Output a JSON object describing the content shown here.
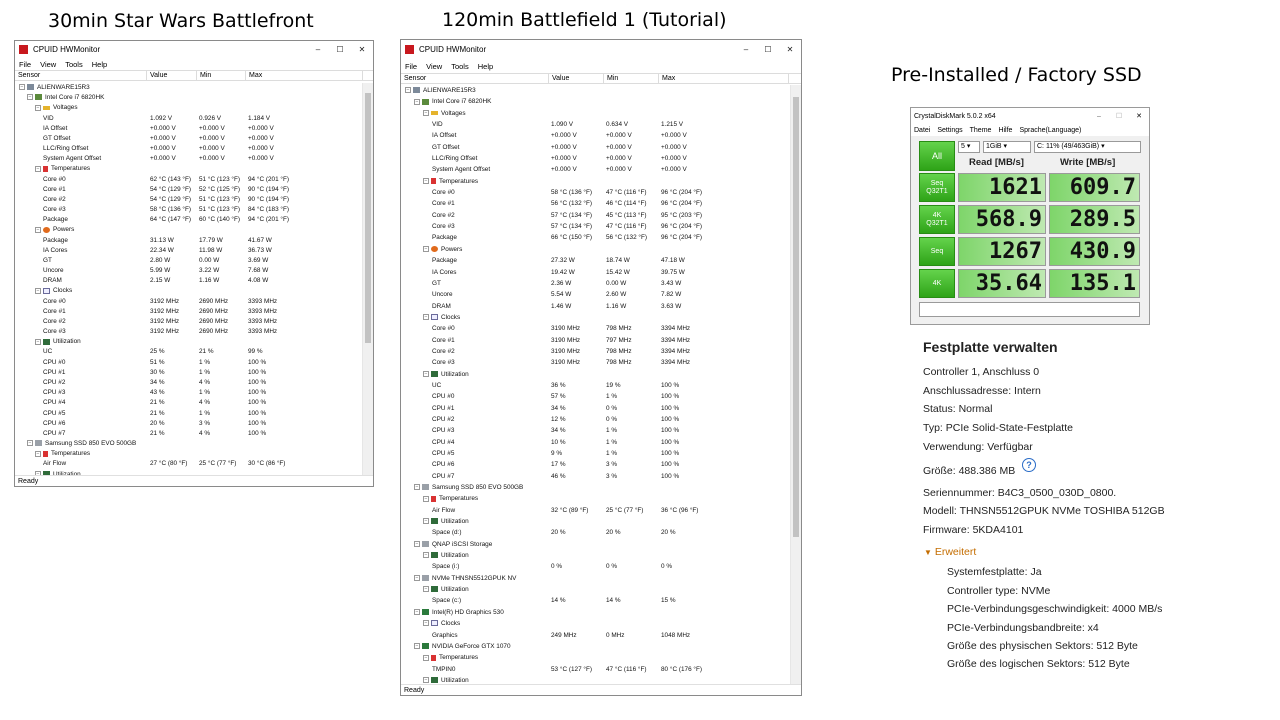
{
  "captions": {
    "left": "30min Star Wars Battlefront",
    "middle": "120min Battlefield 1 (Tutorial)",
    "right": "Pre-Installed / Factory  SSD"
  },
  "hwmon": {
    "title": "CPUID HWMonitor",
    "menu": [
      "File",
      "View",
      "Tools",
      "Help"
    ],
    "columns": [
      "Sensor",
      "Value",
      "Min",
      "Max"
    ],
    "status": "Ready",
    "window_controls": [
      "–",
      "☐",
      "✕"
    ]
  },
  "left_rows": [
    {
      "d": 0,
      "t": "exp",
      "i": "comp",
      "l": "ALIENWARE15R3"
    },
    {
      "d": 1,
      "t": "exp",
      "i": "cpu",
      "l": "Intel Core i7 6820HK"
    },
    {
      "d": 2,
      "t": "exp",
      "i": "volt",
      "l": "Voltages"
    },
    {
      "d": 3,
      "l": "VID",
      "v": "1.092 V",
      "mn": "0.926 V",
      "mx": "1.184 V"
    },
    {
      "d": 3,
      "l": "IA Offset",
      "v": "+0.000 V",
      "mn": "+0.000 V",
      "mx": "+0.000 V"
    },
    {
      "d": 3,
      "l": "GT Offset",
      "v": "+0.000 V",
      "mn": "+0.000 V",
      "mx": "+0.000 V"
    },
    {
      "d": 3,
      "l": "LLC/Ring Offset",
      "v": "+0.000 V",
      "mn": "+0.000 V",
      "mx": "+0.000 V"
    },
    {
      "d": 3,
      "l": "System Agent Offset",
      "v": "+0.000 V",
      "mn": "+0.000 V",
      "mx": "+0.000 V"
    },
    {
      "d": 2,
      "t": "exp",
      "i": "temp",
      "l": "Temperatures"
    },
    {
      "d": 3,
      "l": "Core #0",
      "v": "62 °C (143 °F)",
      "mn": "51 °C (123 °F)",
      "mx": "94 °C (201 °F)"
    },
    {
      "d": 3,
      "l": "Core #1",
      "v": "54 °C (129 °F)",
      "mn": "52 °C (125 °F)",
      "mx": "90 °C (194 °F)"
    },
    {
      "d": 3,
      "l": "Core #2",
      "v": "54 °C (129 °F)",
      "mn": "51 °C (123 °F)",
      "mx": "90 °C (194 °F)"
    },
    {
      "d": 3,
      "l": "Core #3",
      "v": "58 °C (136 °F)",
      "mn": "51 °C (123 °F)",
      "mx": "84 °C (183 °F)"
    },
    {
      "d": 3,
      "l": "Package",
      "v": "64 °C (147 °F)",
      "mn": "60 °C (140 °F)",
      "mx": "94 °C (201 °F)"
    },
    {
      "d": 2,
      "t": "exp",
      "i": "pow",
      "l": "Powers"
    },
    {
      "d": 3,
      "l": "Package",
      "v": "31.13 W",
      "mn": "17.79 W",
      "mx": "41.67 W"
    },
    {
      "d": 3,
      "l": "IA Cores",
      "v": "22.34 W",
      "mn": "11.98 W",
      "mx": "36.73 W"
    },
    {
      "d": 3,
      "l": "GT",
      "v": "2.80 W",
      "mn": "0.00 W",
      "mx": "3.69 W"
    },
    {
      "d": 3,
      "l": "Uncore",
      "v": "5.99 W",
      "mn": "3.22 W",
      "mx": "7.68 W"
    },
    {
      "d": 3,
      "l": "DRAM",
      "v": "2.15 W",
      "mn": "1.16 W",
      "mx": "4.08 W"
    },
    {
      "d": 2,
      "t": "exp",
      "i": "clk",
      "l": "Clocks"
    },
    {
      "d": 3,
      "l": "Core #0",
      "v": "3192 MHz",
      "mn": "2690 MHz",
      "mx": "3393 MHz"
    },
    {
      "d": 3,
      "l": "Core #1",
      "v": "3192 MHz",
      "mn": "2690 MHz",
      "mx": "3393 MHz"
    },
    {
      "d": 3,
      "l": "Core #2",
      "v": "3192 MHz",
      "mn": "2690 MHz",
      "mx": "3393 MHz"
    },
    {
      "d": 3,
      "l": "Core #3",
      "v": "3192 MHz",
      "mn": "2690 MHz",
      "mx": "3393 MHz"
    },
    {
      "d": 2,
      "t": "exp",
      "i": "util",
      "l": "Utilization"
    },
    {
      "d": 3,
      "l": "UC",
      "v": "25 %",
      "mn": "21 %",
      "mx": "99 %"
    },
    {
      "d": 3,
      "l": "CPU #0",
      "v": "51 %",
      "mn": "1 %",
      "mx": "100 %"
    },
    {
      "d": 3,
      "l": "CPU #1",
      "v": "30 %",
      "mn": "1 %",
      "mx": "100 %"
    },
    {
      "d": 3,
      "l": "CPU #2",
      "v": "34 %",
      "mn": "4 %",
      "mx": "100 %"
    },
    {
      "d": 3,
      "l": "CPU #3",
      "v": "43 %",
      "mn": "1 %",
      "mx": "100 %"
    },
    {
      "d": 3,
      "l": "CPU #4",
      "v": "21 %",
      "mn": "4 %",
      "mx": "100 %"
    },
    {
      "d": 3,
      "l": "CPU #5",
      "v": "21 %",
      "mn": "1 %",
      "mx": "100 %"
    },
    {
      "d": 3,
      "l": "CPU #6",
      "v": "20 %",
      "mn": "3 %",
      "mx": "100 %"
    },
    {
      "d": 3,
      "l": "CPU #7",
      "v": "21 %",
      "mn": "4 %",
      "mx": "100 %"
    },
    {
      "d": 1,
      "t": "exp",
      "i": "disk",
      "l": "Samsung SSD 850 EVO 500GB"
    },
    {
      "d": 2,
      "t": "exp",
      "i": "temp",
      "l": "Temperatures"
    },
    {
      "d": 3,
      "l": "Air Flow",
      "v": "27 °C (80 °F)",
      "mn": "25 °C (77 °F)",
      "mx": "30 °C (86 °F)"
    },
    {
      "d": 2,
      "t": "exp",
      "i": "util",
      "l": "Utilization"
    }
  ],
  "mid_rows": [
    {
      "d": 0,
      "t": "exp",
      "i": "comp",
      "l": "ALIENWARE15R3"
    },
    {
      "d": 1,
      "t": "exp",
      "i": "cpu",
      "l": "Intel Core i7 6820HK"
    },
    {
      "d": 2,
      "t": "exp",
      "i": "volt",
      "l": "Voltages"
    },
    {
      "d": 3,
      "l": "VID",
      "v": "1.090 V",
      "mn": "0.634 V",
      "mx": "1.215 V"
    },
    {
      "d": 3,
      "l": "IA Offset",
      "v": "+0.000 V",
      "mn": "+0.000 V",
      "mx": "+0.000 V"
    },
    {
      "d": 3,
      "l": "GT Offset",
      "v": "+0.000 V",
      "mn": "+0.000 V",
      "mx": "+0.000 V"
    },
    {
      "d": 3,
      "l": "LLC/Ring Offset",
      "v": "+0.000 V",
      "mn": "+0.000 V",
      "mx": "+0.000 V"
    },
    {
      "d": 3,
      "l": "System Agent Offset",
      "v": "+0.000 V",
      "mn": "+0.000 V",
      "mx": "+0.000 V"
    },
    {
      "d": 2,
      "t": "exp",
      "i": "temp",
      "l": "Temperatures"
    },
    {
      "d": 3,
      "l": "Core #0",
      "v": "58 °C (136 °F)",
      "mn": "47 °C (116 °F)",
      "mx": "96 °C (204 °F)"
    },
    {
      "d": 3,
      "l": "Core #1",
      "v": "56 °C (132 °F)",
      "mn": "46 °C (114 °F)",
      "mx": "96 °C (204 °F)"
    },
    {
      "d": 3,
      "l": "Core #2",
      "v": "57 °C (134 °F)",
      "mn": "45 °C (113 °F)",
      "mx": "95 °C (203 °F)"
    },
    {
      "d": 3,
      "l": "Core #3",
      "v": "57 °C (134 °F)",
      "mn": "47 °C (116 °F)",
      "mx": "96 °C (204 °F)"
    },
    {
      "d": 3,
      "l": "Package",
      "v": "66 °C (150 °F)",
      "mn": "56 °C (132 °F)",
      "mx": "96 °C (204 °F)"
    },
    {
      "d": 2,
      "t": "exp",
      "i": "pow",
      "l": "Powers"
    },
    {
      "d": 3,
      "l": "Package",
      "v": "27.32 W",
      "mn": "18.74 W",
      "mx": "47.18 W"
    },
    {
      "d": 3,
      "l": "IA Cores",
      "v": "19.42 W",
      "mn": "15.42 W",
      "mx": "39.75 W"
    },
    {
      "d": 3,
      "l": "GT",
      "v": "2.36 W",
      "mn": "0.00 W",
      "mx": "3.43 W"
    },
    {
      "d": 3,
      "l": "Uncore",
      "v": "5.54 W",
      "mn": "2.60 W",
      "mx": "7.82 W"
    },
    {
      "d": 3,
      "l": "DRAM",
      "v": "1.46 W",
      "mn": "1.16 W",
      "mx": "3.63 W"
    },
    {
      "d": 2,
      "t": "exp",
      "i": "clk",
      "l": "Clocks"
    },
    {
      "d": 3,
      "l": "Core #0",
      "v": "3190 MHz",
      "mn": "798 MHz",
      "mx": "3394 MHz"
    },
    {
      "d": 3,
      "l": "Core #1",
      "v": "3190 MHz",
      "mn": "797 MHz",
      "mx": "3394 MHz"
    },
    {
      "d": 3,
      "l": "Core #2",
      "v": "3190 MHz",
      "mn": "798 MHz",
      "mx": "3394 MHz"
    },
    {
      "d": 3,
      "l": "Core #3",
      "v": "3190 MHz",
      "mn": "798 MHz",
      "mx": "3394 MHz"
    },
    {
      "d": 2,
      "t": "exp",
      "i": "util",
      "l": "Utilization"
    },
    {
      "d": 3,
      "l": "UC",
      "v": "36 %",
      "mn": "19 %",
      "mx": "100 %"
    },
    {
      "d": 3,
      "l": "CPU #0",
      "v": "57 %",
      "mn": "1 %",
      "mx": "100 %"
    },
    {
      "d": 3,
      "l": "CPU #1",
      "v": "34 %",
      "mn": "0 %",
      "mx": "100 %"
    },
    {
      "d": 3,
      "l": "CPU #2",
      "v": "12 %",
      "mn": "0 %",
      "mx": "100 %"
    },
    {
      "d": 3,
      "l": "CPU #3",
      "v": "34 %",
      "mn": "1 %",
      "mx": "100 %"
    },
    {
      "d": 3,
      "l": "CPU #4",
      "v": "10 %",
      "mn": "1 %",
      "mx": "100 %"
    },
    {
      "d": 3,
      "l": "CPU #5",
      "v": "9 %",
      "mn": "1 %",
      "mx": "100 %"
    },
    {
      "d": 3,
      "l": "CPU #6",
      "v": "17 %",
      "mn": "3 %",
      "mx": "100 %"
    },
    {
      "d": 3,
      "l": "CPU #7",
      "v": "46 %",
      "mn": "3 %",
      "mx": "100 %"
    },
    {
      "d": 1,
      "t": "exp",
      "i": "disk",
      "l": "Samsung SSD 850 EVO 500GB"
    },
    {
      "d": 2,
      "t": "exp",
      "i": "temp",
      "l": "Temperatures"
    },
    {
      "d": 3,
      "l": "Air Flow",
      "v": "32 °C (89 °F)",
      "mn": "25 °C (77 °F)",
      "mx": "36 °C (96 °F)"
    },
    {
      "d": 2,
      "t": "exp",
      "i": "util",
      "l": "Utilization"
    },
    {
      "d": 3,
      "l": "Space (d:)",
      "v": "20 %",
      "mn": "20 %",
      "mx": "20 %"
    },
    {
      "d": 1,
      "t": "exp",
      "i": "disk",
      "l": "QNAP iSCSI Storage"
    },
    {
      "d": 2,
      "t": "exp",
      "i": "util",
      "l": "Utilization"
    },
    {
      "d": 3,
      "l": "Space (i:)",
      "v": "0 %",
      "mn": "0 %",
      "mx": "0 %"
    },
    {
      "d": 1,
      "t": "exp",
      "i": "disk",
      "l": "NVMe THNSN5512GPUK NV"
    },
    {
      "d": 2,
      "t": "exp",
      "i": "util",
      "l": "Utilization"
    },
    {
      "d": 3,
      "l": "Space (c:)",
      "v": "14 %",
      "mn": "14 %",
      "mx": "15 %"
    },
    {
      "d": 1,
      "t": "exp",
      "i": "gpu",
      "l": "Intel(R) HD Graphics 530"
    },
    {
      "d": 2,
      "t": "exp",
      "i": "clk",
      "l": "Clocks"
    },
    {
      "d": 3,
      "l": "Graphics",
      "v": "249 MHz",
      "mn": "0 MHz",
      "mx": "1048 MHz"
    },
    {
      "d": 1,
      "t": "exp",
      "i": "gpu",
      "l": "NVIDIA GeForce GTX 1070"
    },
    {
      "d": 2,
      "t": "exp",
      "i": "temp",
      "l": "Temperatures"
    },
    {
      "d": 3,
      "l": "TMPIN0",
      "v": "53 °C (127 °F)",
      "mn": "47 °C (116 °F)",
      "mx": "80 °C (176 °F)"
    },
    {
      "d": 2,
      "t": "exp",
      "i": "util",
      "l": "Utilization"
    }
  ],
  "cdm": {
    "title": "CrystalDiskMark 5.0.2 x64",
    "menu": [
      "Datei",
      "Settings",
      "Theme",
      "Hilfe",
      "Sprache(Language)"
    ],
    "all_label": "All",
    "count": "5",
    "size": "1GiB",
    "drive": "C: 11% (49/463GiB)",
    "read_header": "Read [MB/s]",
    "write_header": "Write [MB/s]",
    "tests": [
      {
        "name": "Seq",
        "sub": "Q32T1",
        "read": "1621",
        "write": "609.7"
      },
      {
        "name": "4K",
        "sub": "Q32T1",
        "read": "568.9",
        "write": "289.5"
      },
      {
        "name": "Seq",
        "sub": "",
        "read": "1267",
        "write": "430.9"
      },
      {
        "name": "4K",
        "sub": "",
        "read": "35.64",
        "write": "135.1"
      }
    ]
  },
  "disk": {
    "title": "Festplatte verwalten",
    "lines": [
      "Controller 1, Anschluss 0",
      "Anschlussadresse: Intern",
      "Status: Normal",
      "Typ: PCIe Solid-State-Festplatte",
      "Verwendung: Verfügbar",
      "Größe: 488.386 MB",
      "Seriennummer: B4C3_0500_030D_0800.",
      "Modell: THNSN5512GPUK NVMe TOSHIBA 512GB",
      "Firmware: 5KDA4101"
    ],
    "advanced_label": "Erweitert",
    "advanced": [
      "Systemfestplatte: Ja",
      "Controller type: NVMe",
      "PCIe-Verbindungsgeschwindigkeit: 4000 MB/s",
      "PCIe-Verbindungsbandbreite: x4",
      "Größe des physischen Sektors: 512 Byte",
      "Größe des logischen Sektors: 512 Byte"
    ]
  }
}
